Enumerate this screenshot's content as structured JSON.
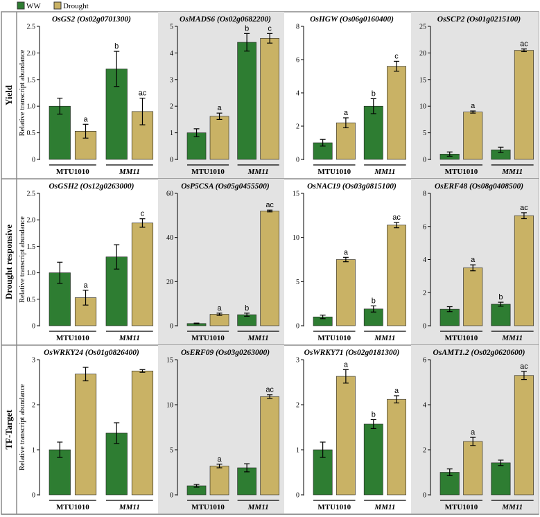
{
  "legend": {
    "entries": [
      {
        "label": "WW",
        "color": "#2e7d32"
      },
      {
        "label": "Drought",
        "color": "#c9b265"
      }
    ]
  },
  "colors": {
    "ww": "#2e7d32",
    "drought": "#c9b265",
    "panel_shade": "#e3e3e3",
    "frame": "#8a8a8a"
  },
  "y_axis_label": "Relative transcript abundance",
  "x_groups": [
    "MTU1010",
    "MM11"
  ],
  "chart_data": [
    {
      "type": "bar",
      "row_label": "Yield",
      "title": "OsGS2 (Os02g0701300)",
      "categories": [
        "MTU1010",
        "MM11"
      ],
      "series": [
        {
          "name": "WW",
          "values": [
            1.0,
            1.7
          ],
          "errors": [
            0.15,
            0.33
          ]
        },
        {
          "name": "Drought",
          "values": [
            0.53,
            0.9
          ],
          "errors": [
            0.13,
            0.25
          ]
        }
      ],
      "labels": [
        [
          "",
          "b"
        ],
        [
          "a",
          "ac"
        ]
      ],
      "ylim": [
        0,
        2.5
      ],
      "yticks": [
        0,
        0.5,
        1.0,
        1.5,
        2.0,
        2.5
      ],
      "ytick_labels": [
        "0",
        "0.5",
        "1.0",
        "1.5",
        "2.0",
        "2.5"
      ],
      "shaded": false
    },
    {
      "type": "bar",
      "row_label": "Yield",
      "title": "OsMADS6 (Os02g0682200)",
      "categories": [
        "MTU1010",
        "MM11"
      ],
      "series": [
        {
          "name": "WW",
          "values": [
            1.0,
            4.4
          ],
          "errors": [
            0.15,
            0.33
          ]
        },
        {
          "name": "Drought",
          "values": [
            1.62,
            4.55
          ],
          "errors": [
            0.12,
            0.18
          ]
        }
      ],
      "labels": [
        [
          "",
          "b"
        ],
        [
          "a",
          "c"
        ]
      ],
      "ylim": [
        0,
        5
      ],
      "yticks": [
        0,
        1,
        2,
        3,
        4,
        5
      ],
      "ytick_labels": [
        "0",
        "1",
        "2",
        "3",
        "4",
        "5"
      ],
      "shaded": true
    },
    {
      "type": "bar",
      "row_label": "Yield",
      "title": "OsHGW (Os06g0160400)",
      "categories": [
        "MTU1010",
        "MM11"
      ],
      "series": [
        {
          "name": "WW",
          "values": [
            1.0,
            3.2
          ],
          "errors": [
            0.2,
            0.45
          ]
        },
        {
          "name": "Drought",
          "values": [
            2.2,
            5.6
          ],
          "errors": [
            0.3,
            0.3
          ]
        }
      ],
      "labels": [
        [
          "",
          "b"
        ],
        [
          "a",
          "c"
        ]
      ],
      "ylim": [
        0,
        8
      ],
      "yticks": [
        0,
        2,
        4,
        6,
        8
      ],
      "ytick_labels": [
        "0",
        "2",
        "4",
        "6",
        "8"
      ],
      "shaded": false
    },
    {
      "type": "bar",
      "row_label": "Yield",
      "title": "OsSCP2 (Os01g0215100)",
      "categories": [
        "MTU1010",
        "MM11"
      ],
      "series": [
        {
          "name": "WW",
          "values": [
            1.0,
            1.8
          ],
          "errors": [
            0.4,
            0.5
          ]
        },
        {
          "name": "Drought",
          "values": [
            8.9,
            20.5
          ],
          "errors": [
            0.2,
            0.25
          ]
        }
      ],
      "labels": [
        [
          "",
          ""
        ],
        [
          "a",
          "ac"
        ]
      ],
      "ylim": [
        0,
        25
      ],
      "yticks": [
        0,
        5,
        10,
        15,
        20,
        25
      ],
      "ytick_labels": [
        "0",
        "5",
        "10",
        "15",
        "20",
        "25"
      ],
      "shaded": true
    },
    {
      "type": "bar",
      "row_label": "Drought responsive",
      "title": "OsGSH2 (Os12g0263000)",
      "categories": [
        "MTU1010",
        "MM11"
      ],
      "series": [
        {
          "name": "WW",
          "values": [
            1.0,
            1.3
          ],
          "errors": [
            0.2,
            0.23
          ]
        },
        {
          "name": "Drought",
          "values": [
            0.53,
            1.94
          ],
          "errors": [
            0.14,
            0.08
          ]
        }
      ],
      "labels": [
        [
          "",
          ""
        ],
        [
          "a",
          "c"
        ]
      ],
      "ylim": [
        0,
        2.5
      ],
      "yticks": [
        0,
        0.5,
        1.0,
        1.5,
        2.0,
        2.5
      ],
      "ytick_labels": [
        "0",
        "0.5",
        "1.0",
        "1.5",
        "2.0",
        "2.5"
      ],
      "shaded": false
    },
    {
      "type": "bar",
      "row_label": "Drought responsive",
      "title": "OsP5CSA (Os05g0455500)",
      "categories": [
        "MTU1010",
        "MM11"
      ],
      "series": [
        {
          "name": "WW",
          "values": [
            1.0,
            5.0
          ],
          "errors": [
            0.2,
            0.7
          ]
        },
        {
          "name": "Drought",
          "values": [
            5.2,
            52.0
          ],
          "errors": [
            0.5,
            0.4
          ]
        }
      ],
      "labels": [
        [
          "",
          "b"
        ],
        [
          "a",
          "ac"
        ]
      ],
      "ylim": [
        0,
        60
      ],
      "yticks": [
        0,
        20,
        40,
        60
      ],
      "ytick_labels": [
        "0",
        "20",
        "40",
        "60"
      ],
      "shaded": true
    },
    {
      "type": "bar",
      "row_label": "Drought responsive",
      "title": "OsNAC19 (Os03g0815100)",
      "categories": [
        "MTU1010",
        "MM11"
      ],
      "series": [
        {
          "name": "WW",
          "values": [
            1.0,
            1.9
          ],
          "errors": [
            0.2,
            0.35
          ]
        },
        {
          "name": "Drought",
          "values": [
            7.5,
            11.4
          ],
          "errors": [
            0.25,
            0.3
          ]
        }
      ],
      "labels": [
        [
          "",
          "b"
        ],
        [
          "a",
          "ac"
        ]
      ],
      "ylim": [
        0,
        15
      ],
      "yticks": [
        0,
        5,
        10,
        15
      ],
      "ytick_labels": [
        "0",
        "5",
        "10",
        "15"
      ],
      "shaded": false
    },
    {
      "type": "bar",
      "row_label": "Drought responsive",
      "title": "OsERF48 (Os08g0408500)",
      "categories": [
        "MTU1010",
        "MM11"
      ],
      "series": [
        {
          "name": "WW",
          "values": [
            1.0,
            1.3
          ],
          "errors": [
            0.15,
            0.12
          ]
        },
        {
          "name": "Drought",
          "values": [
            3.5,
            6.65
          ],
          "errors": [
            0.18,
            0.18
          ]
        }
      ],
      "labels": [
        [
          "",
          "b"
        ],
        [
          "a",
          "ac"
        ]
      ],
      "ylim": [
        0,
        8
      ],
      "yticks": [
        0,
        2,
        4,
        6,
        8
      ],
      "ytick_labels": [
        "0",
        "2",
        "4",
        "6",
        "8"
      ],
      "shaded": true
    },
    {
      "type": "bar",
      "row_label": "TF-Target",
      "title": "OsWRKY24 (Os01g0826400)",
      "categories": [
        "MTU1010",
        "MM11"
      ],
      "series": [
        {
          "name": "WW",
          "values": [
            1.0,
            1.37
          ],
          "errors": [
            0.17,
            0.23
          ]
        },
        {
          "name": "Drought",
          "values": [
            2.68,
            2.75
          ],
          "errors": [
            0.15,
            0.03
          ]
        }
      ],
      "labels": [
        [
          "",
          ""
        ],
        [
          "",
          ""
        ]
      ],
      "ylim": [
        0,
        3
      ],
      "yticks": [
        0,
        1,
        2,
        3
      ],
      "ytick_labels": [
        "0",
        "1",
        "2",
        "3"
      ],
      "shaded": false
    },
    {
      "type": "bar",
      "row_label": "TF-Target",
      "title": "OsERF09 (Os03g0263000)",
      "categories": [
        "MTU1010",
        "MM11"
      ],
      "series": [
        {
          "name": "WW",
          "values": [
            1.0,
            3.0
          ],
          "errors": [
            0.15,
            0.45
          ]
        },
        {
          "name": "Drought",
          "values": [
            3.2,
            10.9
          ],
          "errors": [
            0.2,
            0.2
          ]
        }
      ],
      "labels": [
        [
          "",
          ""
        ],
        [
          "a",
          "ac"
        ]
      ],
      "ylim": [
        0,
        15
      ],
      "yticks": [
        0,
        5,
        10,
        15
      ],
      "ytick_labels": [
        "0",
        "5",
        "10",
        "15"
      ],
      "shaded": true
    },
    {
      "type": "bar",
      "row_label": "TF-Target",
      "title": "OsWRKY71 (Os02g0181300)",
      "categories": [
        "MTU1010",
        "MM11"
      ],
      "series": [
        {
          "name": "WW",
          "values": [
            1.0,
            1.57
          ],
          "errors": [
            0.17,
            0.1
          ]
        },
        {
          "name": "Drought",
          "values": [
            2.63,
            2.12
          ],
          "errors": [
            0.15,
            0.08
          ]
        }
      ],
      "labels": [
        [
          "",
          "b"
        ],
        [
          "a",
          "a"
        ]
      ],
      "ylim": [
        0,
        3
      ],
      "yticks": [
        0,
        1,
        2,
        3
      ],
      "ytick_labels": [
        "0",
        "1",
        "2",
        "3"
      ],
      "shaded": false
    },
    {
      "type": "bar",
      "row_label": "TF-Target",
      "title": "OsAMT1.2 (Os02g0620600)",
      "categories": [
        "MTU1010",
        "MM11"
      ],
      "series": [
        {
          "name": "WW",
          "values": [
            1.0,
            1.42
          ],
          "errors": [
            0.15,
            0.12
          ]
        },
        {
          "name": "Drought",
          "values": [
            2.37,
            5.3
          ],
          "errors": [
            0.18,
            0.18
          ]
        }
      ],
      "labels": [
        [
          "",
          ""
        ],
        [
          "a",
          "ac"
        ]
      ],
      "ylim": [
        0,
        6
      ],
      "yticks": [
        0,
        2,
        4,
        6
      ],
      "ytick_labels": [
        "0",
        "2",
        "4",
        "6"
      ],
      "shaded": true
    }
  ]
}
